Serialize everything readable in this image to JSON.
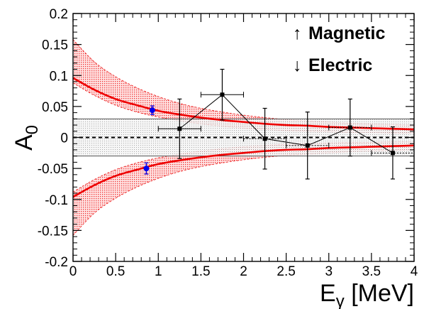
{
  "chart_data": {
    "type": "scatter",
    "xlabel": "E",
    "xlabel_subscript": "γ",
    "xlabel_unit": "[MeV]",
    "ylabel": "A",
    "ylabel_subscript": "0",
    "xlim": [
      0,
      4
    ],
    "ylim": [
      -0.2,
      0.2
    ],
    "x_ticks": [
      0,
      0.5,
      1,
      1.5,
      2,
      2.5,
      3,
      3.5,
      4
    ],
    "x_tick_labels": [
      "0",
      "0.5",
      "1",
      "1.5",
      "2",
      "2.5",
      "3",
      "3.5",
      "4"
    ],
    "y_ticks": [
      -0.2,
      -0.15,
      -0.1,
      -0.05,
      0,
      0.05,
      0.1,
      0.15,
      0.2
    ],
    "y_tick_labels": [
      "-0.2",
      "-0.15",
      "-0.1",
      "-0.05",
      "0",
      "0.05",
      "0.1",
      "0.15",
      "0.2"
    ],
    "grid": false,
    "legend_position": "top-right",
    "legend": [
      {
        "arrow": "↑",
        "label": "Magnetic"
      },
      {
        "arrow": "↓",
        "label": "Electric"
      }
    ],
    "reference_line": {
      "y": 0,
      "style": "dashed",
      "color": "#000000"
    },
    "systematic_band": {
      "y_low": -0.03,
      "y_high": 0.03,
      "color": "#bbbbbb"
    },
    "curves": [
      {
        "color": "#ee0000",
        "band_color": "#ee3333",
        "x": [
          0,
          0.25,
          0.5,
          0.75,
          1,
          1.25,
          1.5,
          1.75,
          2,
          2.25,
          2.5,
          2.75,
          3,
          3.25,
          3.5,
          3.75,
          4
        ],
        "y": [
          0.096,
          0.077,
          0.062,
          0.052,
          0.043,
          0.037,
          0.032,
          0.028,
          0.025,
          0.022,
          0.02,
          0.019,
          0.017,
          0.016,
          0.015,
          0.014,
          0.013
        ],
        "y_low": [
          0.088,
          0.068,
          0.052,
          0.041,
          0.033,
          0.027,
          0.022,
          0.018,
          0.015,
          0.013,
          0.011,
          0.01,
          0.009,
          0.008,
          0.008,
          0.007,
          0.007
        ],
        "y_high": [
          0.158,
          0.122,
          0.098,
          0.08,
          0.066,
          0.055,
          0.047,
          0.041,
          0.036,
          0.032,
          0.029,
          0.027,
          0.025,
          0.023,
          0.022,
          0.021,
          0.02
        ]
      },
      {
        "color": "#ee0000",
        "band_color": "#ee3333",
        "x": [
          0,
          0.25,
          0.5,
          0.75,
          1,
          1.25,
          1.5,
          1.75,
          2,
          2.25,
          2.5,
          2.75,
          3,
          3.25,
          3.5,
          3.75,
          4
        ],
        "y": [
          -0.096,
          -0.077,
          -0.062,
          -0.052,
          -0.043,
          -0.037,
          -0.032,
          -0.028,
          -0.025,
          -0.022,
          -0.02,
          -0.019,
          -0.017,
          -0.016,
          -0.015,
          -0.014,
          -0.013
        ],
        "y_low": [
          -0.158,
          -0.122,
          -0.098,
          -0.08,
          -0.066,
          -0.055,
          -0.047,
          -0.041,
          -0.036,
          -0.032,
          -0.029,
          -0.027,
          -0.025,
          -0.023,
          -0.022,
          -0.021,
          -0.02
        ],
        "y_high": [
          -0.088,
          -0.068,
          -0.052,
          -0.041,
          -0.033,
          -0.027,
          -0.022,
          -0.018,
          -0.015,
          -0.013,
          -0.011,
          -0.01,
          -0.009,
          -0.008,
          -0.008,
          -0.007,
          -0.007
        ]
      }
    ],
    "series": [
      {
        "marker": "square",
        "color": "#000000",
        "connected": true,
        "points": [
          {
            "x": 1.25,
            "y": 0.014,
            "xerr": 0.25,
            "yerr": 0.048
          },
          {
            "x": 1.75,
            "y": 0.069,
            "xerr": 0.25,
            "yerr": 0.041
          },
          {
            "x": 2.25,
            "y": -0.002,
            "xerr": 0.25,
            "yerr": 0.049
          },
          {
            "x": 2.75,
            "y": -0.013,
            "xerr": 0.25,
            "yerr": 0.054
          },
          {
            "x": 3.25,
            "y": 0.016,
            "xerr": 0.25,
            "yerr": 0.046
          },
          {
            "x": 3.75,
            "y": -0.025,
            "xerr": 0.25,
            "yerr": 0.042
          }
        ]
      },
      {
        "marker": "circle",
        "color": "#0000ee",
        "connected": false,
        "points": [
          {
            "x": 0.93,
            "y": 0.044,
            "xerr": 0,
            "yerr": 0.007
          },
          {
            "x": 0.86,
            "y": -0.05,
            "xerr": 0,
            "yerr": 0.009
          }
        ]
      }
    ]
  }
}
